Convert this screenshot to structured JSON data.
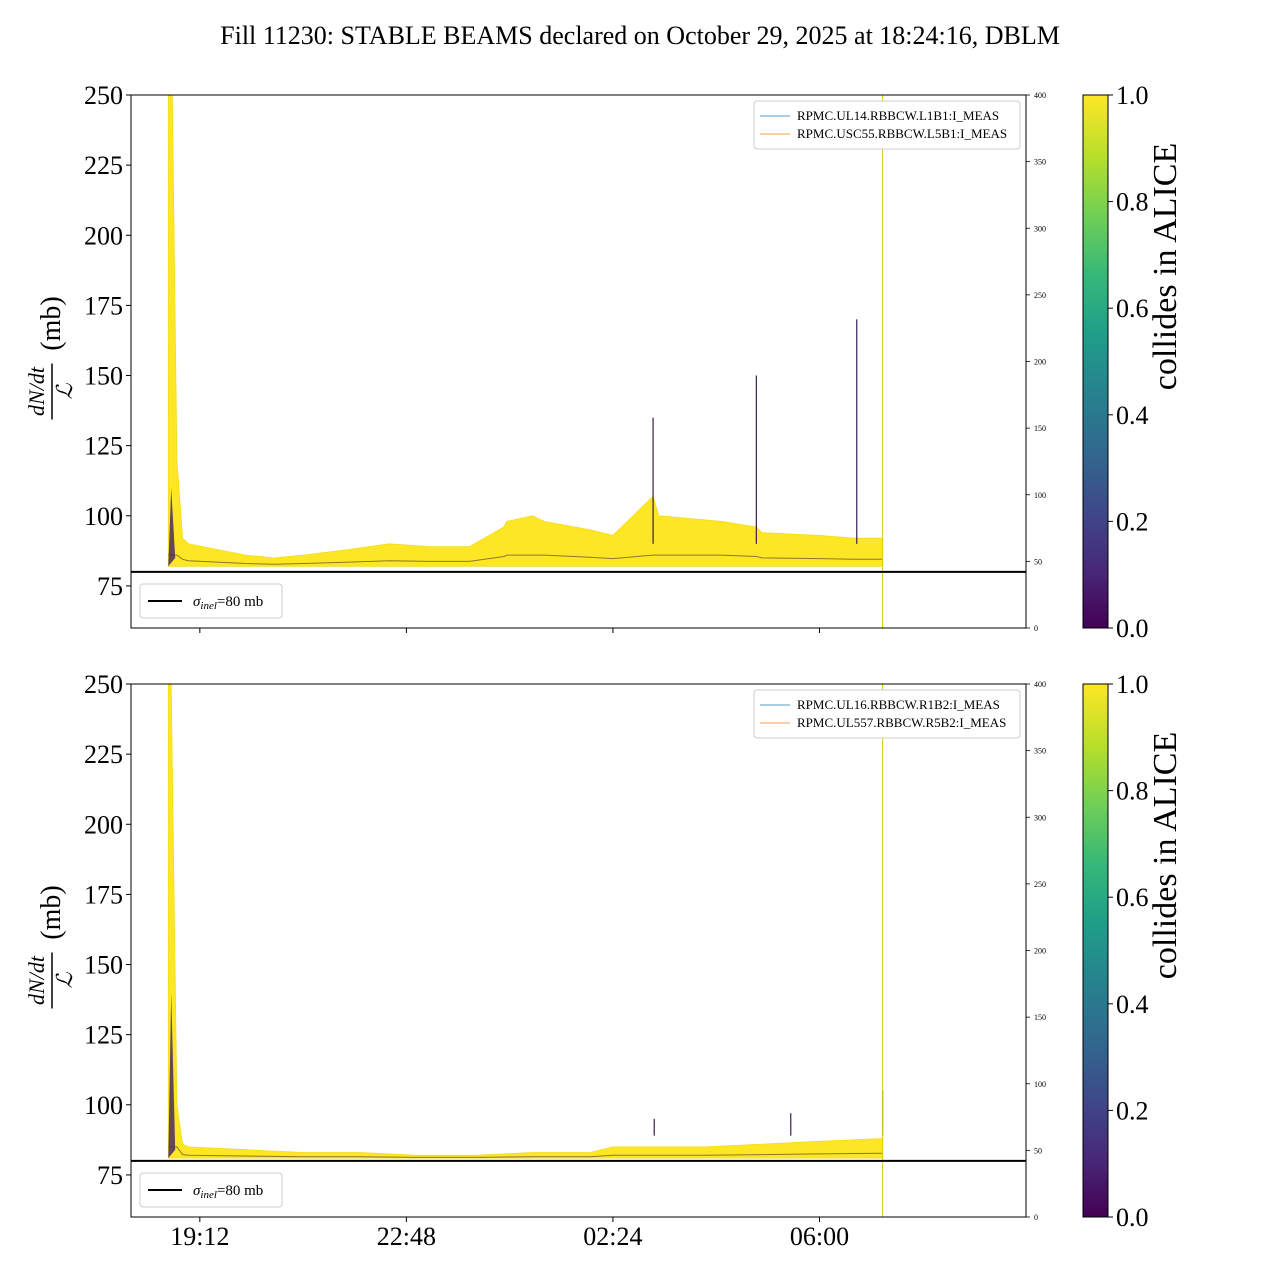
{
  "title": "Fill 11230: STABLE BEAMS declared on October 29, 2025 at 18:24:16, DBLM",
  "chart_data": [
    {
      "type": "area",
      "panel": "top",
      "ylabel": "(mb)",
      "ylabel_numerator": "dN/dt",
      "ylabel_denominator": "ℒ",
      "ylim": [
        60,
        250
      ],
      "yticks": [
        75,
        100,
        125,
        150,
        175,
        200,
        225,
        250
      ],
      "ytick_labels": [
        "75",
        "100",
        "125",
        "150",
        "175",
        "200",
        "225",
        "250"
      ],
      "secondary_ylim": [
        0,
        400
      ],
      "secondary_yticks": [
        0,
        50,
        100,
        150,
        200,
        250,
        300,
        350,
        400
      ],
      "secondary_ytick_labels": [
        "0",
        "50",
        "100",
        "150",
        "200",
        "250",
        "300",
        "350",
        "400"
      ],
      "xlim_hours": [
        18.0,
        9.6
      ],
      "xticks_hours": [
        19.2,
        22.8,
        26.4,
        30.0
      ],
      "xtick_labels": [
        "",
        "",
        "",
        ""
      ],
      "reference_line": {
        "y": 80,
        "label": "σinel=80 mb",
        "symbol": "σ",
        "subscript": "inel",
        "suffix": "=80 mb"
      },
      "legend": {
        "position": "top-right",
        "entries": [
          {
            "label": "RPMC.UL14.RBBCW.L1B1:I_MEAS",
            "color": "#1f77b4"
          },
          {
            "label": "RPMC.USC55.RBBCW.L5B1:I_MEAS",
            "color": "#ff7f0e"
          }
        ]
      },
      "band": {
        "x": [
          18.65,
          18.72,
          18.8,
          18.9,
          19.0,
          19.5,
          20.0,
          20.5,
          21.0,
          21.8,
          22.5,
          23.2,
          23.9,
          24.5,
          24.55,
          25.0,
          25.2,
          26.0,
          26.4,
          27.1,
          27.2,
          28.3,
          28.9,
          29.0,
          30.0,
          30.6,
          31.1
        ],
        "upper": [
          250,
          250,
          120,
          92,
          90,
          88,
          86,
          85,
          86,
          88,
          90,
          89,
          89,
          96,
          98,
          100,
          98,
          95,
          93,
          107,
          100,
          98,
          96,
          94,
          93,
          92,
          92
        ],
        "lower": [
          82,
          82,
          82,
          82,
          82,
          82,
          82,
          82,
          82,
          82,
          82,
          82,
          82,
          82,
          82,
          82,
          82,
          82,
          82,
          82,
          82,
          82,
          82,
          82,
          82,
          82,
          82
        ]
      },
      "spikes": [
        {
          "x": 27.1,
          "y": 135
        },
        {
          "x": 28.9,
          "y": 150
        },
        {
          "x": 30.65,
          "y": 170
        }
      ]
    },
    {
      "type": "area",
      "panel": "bottom",
      "ylabel": "(mb)",
      "ylabel_numerator": "dN/dt",
      "ylabel_denominator": "ℒ",
      "ylim": [
        60,
        250
      ],
      "yticks": [
        75,
        100,
        125,
        150,
        175,
        200,
        225,
        250
      ],
      "ytick_labels": [
        "75",
        "100",
        "125",
        "150",
        "175",
        "200",
        "225",
        "250"
      ],
      "secondary_ylim": [
        0,
        400
      ],
      "secondary_yticks": [
        0,
        50,
        100,
        150,
        200,
        250,
        300,
        350,
        400
      ],
      "secondary_ytick_labels": [
        "0",
        "50",
        "100",
        "150",
        "200",
        "250",
        "300",
        "350",
        "400"
      ],
      "xlim_hours": [
        18.0,
        9.6
      ],
      "xticks_hours": [
        19.2,
        22.8,
        26.4,
        30.0
      ],
      "xtick_labels": [
        "19:12",
        "22:48",
        "02:24",
        "06:00"
      ],
      "reference_line": {
        "y": 80,
        "label": "σinel=80 mb",
        "symbol": "σ",
        "subscript": "inel",
        "suffix": "=80 mb"
      },
      "legend": {
        "position": "top-right",
        "entries": [
          {
            "label": "RPMC.UL16.RBBCW.R1B2:I_MEAS",
            "color": "#1f77b4"
          },
          {
            "label": "RPMC.UL557.RBBCW.R5B2:I_MEAS",
            "color": "#ff7f0e"
          }
        ]
      },
      "band": {
        "x": [
          18.65,
          18.7,
          18.8,
          18.9,
          19.0,
          20.0,
          21.0,
          22.0,
          23.0,
          24.0,
          25.0,
          26.0,
          26.4,
          27.0,
          28.0,
          29.0,
          30.0,
          31.1
        ],
        "upper": [
          250,
          250,
          100,
          86,
          85,
          84,
          83,
          83,
          82,
          82,
          83,
          83,
          85,
          85,
          85,
          86,
          87,
          88
        ],
        "lower": [
          81,
          81,
          81,
          81,
          81,
          81,
          81,
          81,
          81,
          81,
          81,
          81,
          81,
          81,
          81,
          81,
          81,
          81
        ]
      },
      "spikes": [
        {
          "x": 27.12,
          "y": 95
        },
        {
          "x": 29.5,
          "y": 97
        },
        {
          "x": 31.1,
          "y": 105
        }
      ]
    }
  ],
  "colorbar": {
    "label": "collides in ALICE",
    "range": [
      0.0,
      1.0
    ],
    "ticks": [
      0.0,
      0.2,
      0.4,
      0.6,
      0.8,
      1.0
    ],
    "tick_labels": [
      "0.0",
      "0.2",
      "0.4",
      "0.6",
      "0.8",
      "1.0"
    ],
    "colormap": [
      "#440154",
      "#482878",
      "#3e4989",
      "#31688e",
      "#26828e",
      "#1f9e89",
      "#35b779",
      "#6ece58",
      "#b5de2b",
      "#fde725"
    ]
  }
}
